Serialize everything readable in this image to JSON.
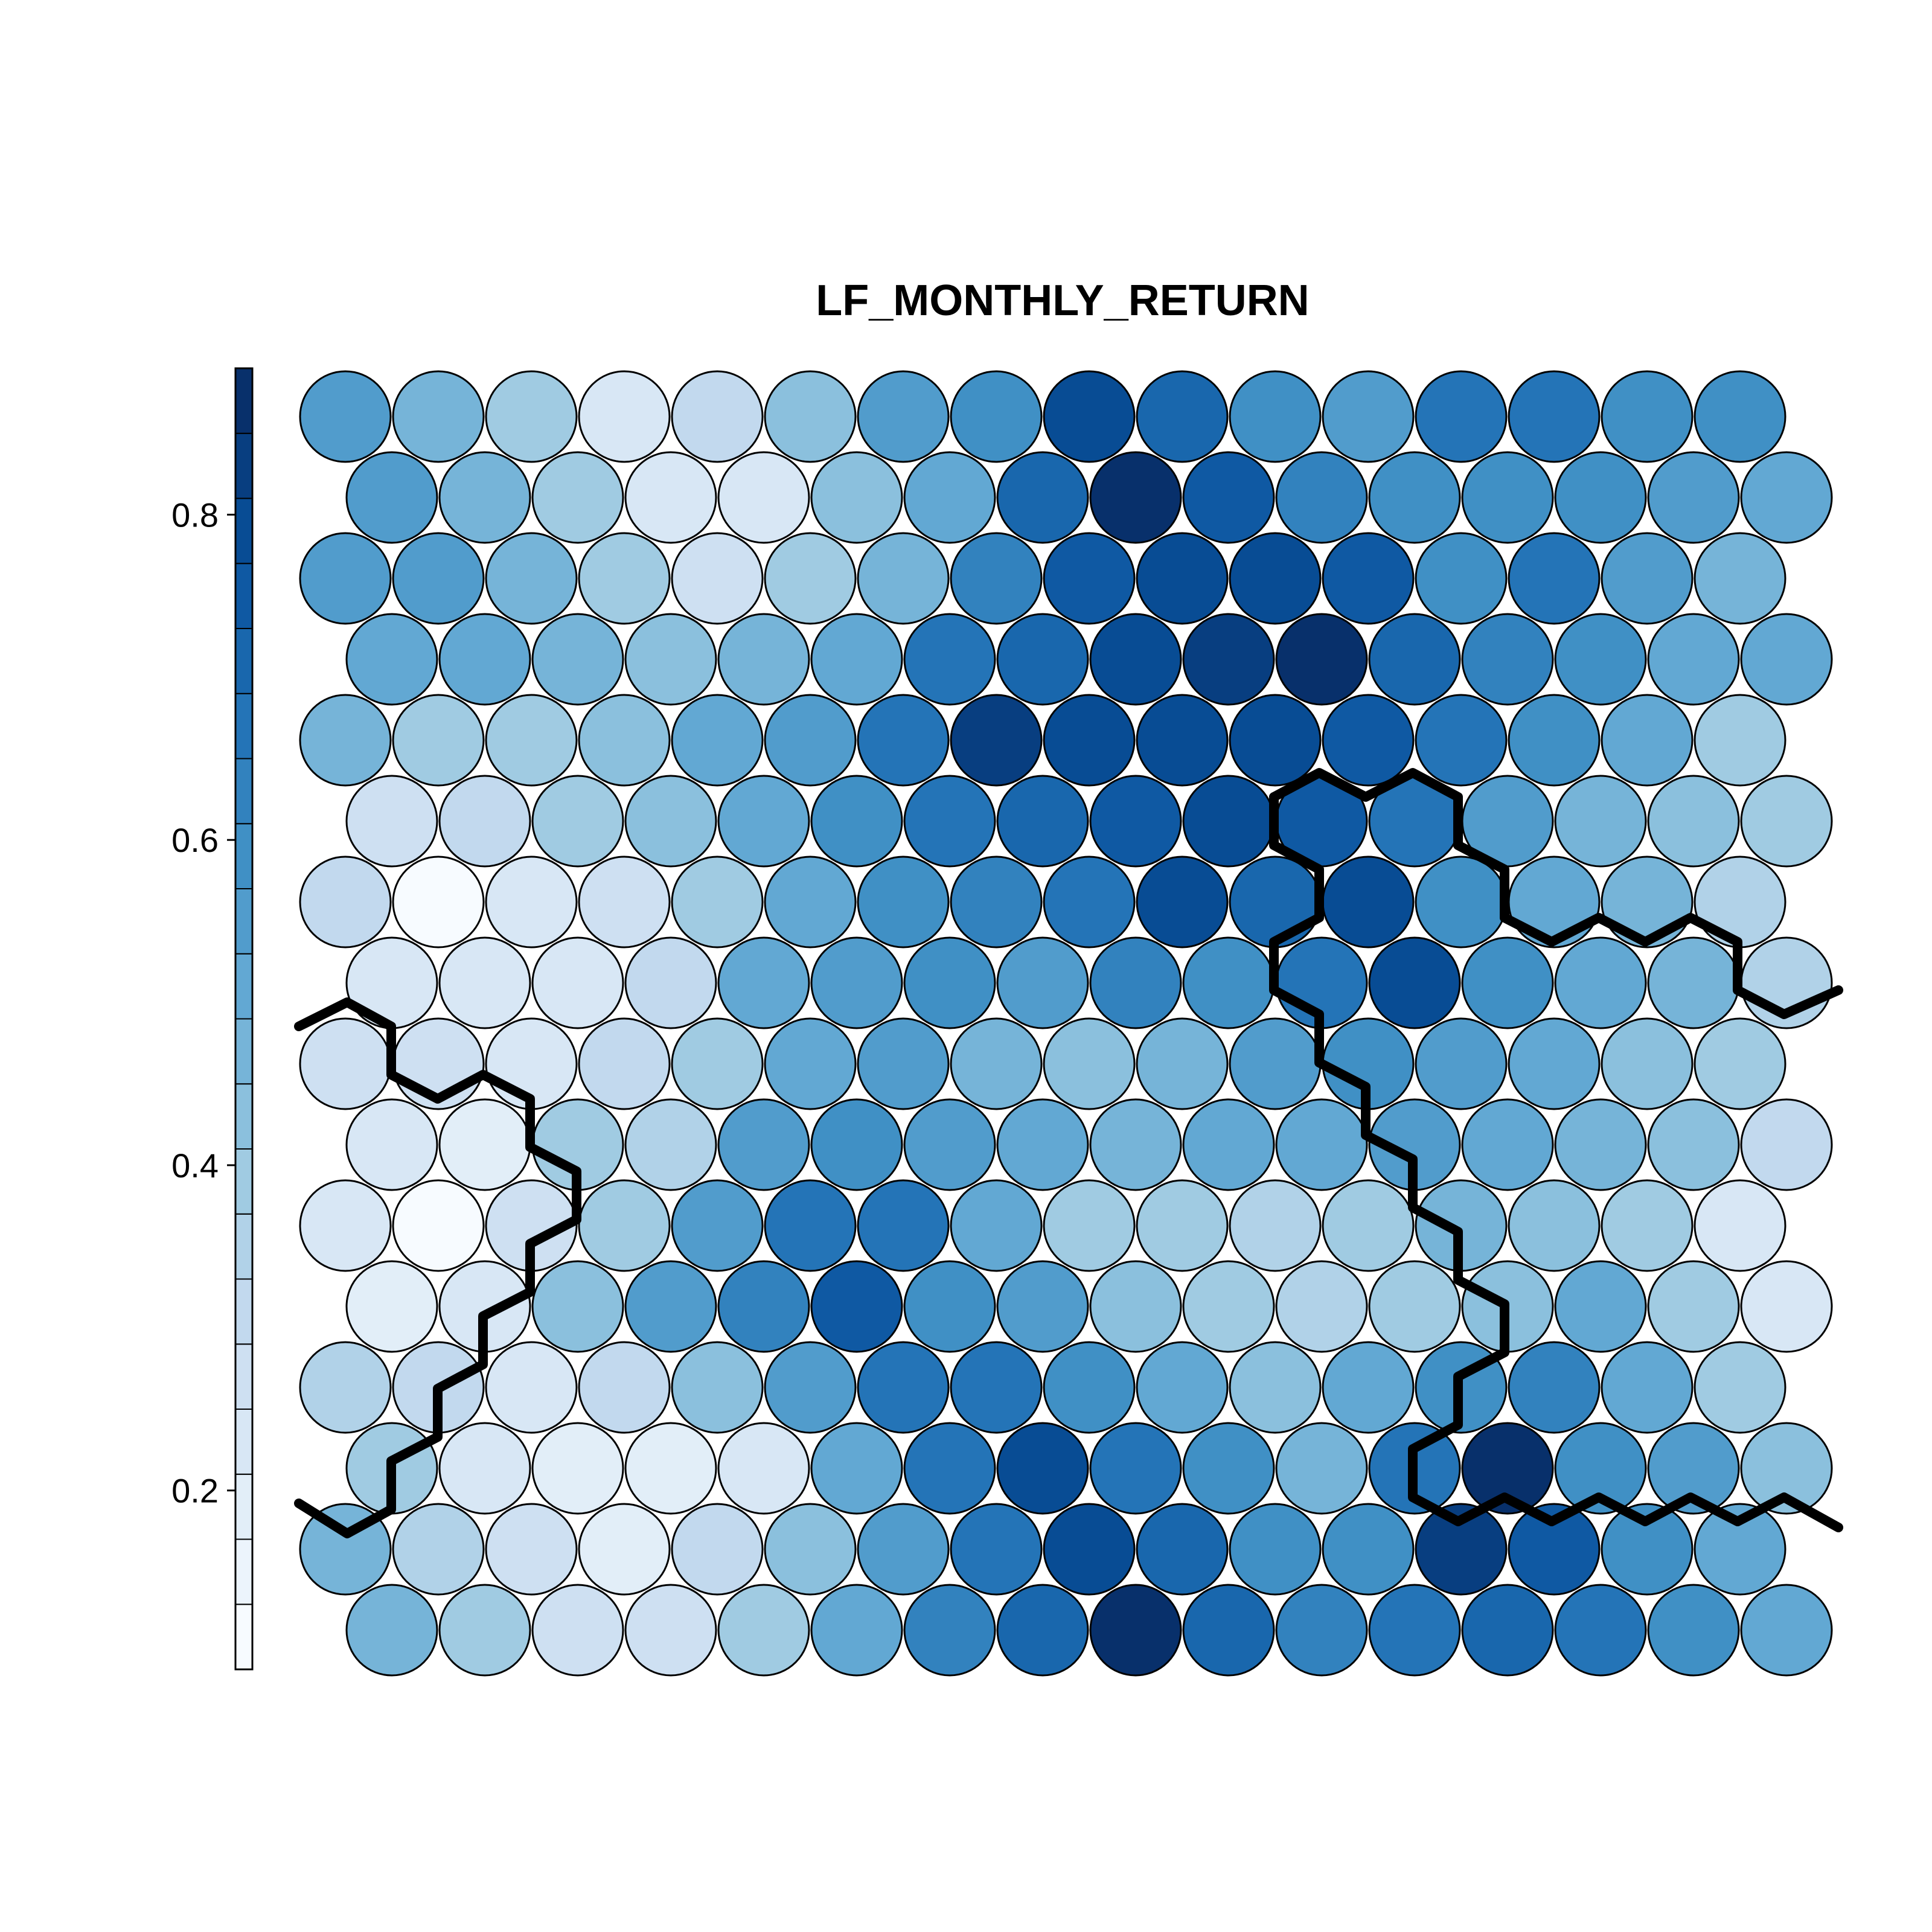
{
  "chart_data": {
    "type": "heatmap",
    "subtype": "som-hexagonal-property-map",
    "title": "LF_MONTHLY_RETURN",
    "grid": {
      "columns": 16,
      "rows": 16,
      "topology": "hexagonal"
    },
    "color_scale": {
      "palette": "Blues",
      "range": [
        0.09,
        0.89
      ],
      "bins": 20,
      "ticks": [
        0.2,
        0.4,
        0.6,
        0.8
      ],
      "tick_labels": [
        "0.2",
        "0.4",
        "0.6",
        "0.8"
      ],
      "palette_stops": [
        "#f7fbff",
        "#deebf7",
        "#c6dbef",
        "#9ecae1",
        "#6baed6",
        "#4292c6",
        "#2171b5",
        "#08519c",
        "#08306b"
      ]
    },
    "row_order": "top-to-bottom",
    "rows_data": [
      [
        0.53,
        0.45,
        0.41,
        0.22,
        0.3,
        0.42,
        0.53,
        0.6,
        0.79,
        0.71,
        0.6,
        0.56,
        0.66,
        0.67,
        0.59,
        0.58
      ],
      [
        0.56,
        0.48,
        0.38,
        0.21,
        0.25,
        0.42,
        0.5,
        0.7,
        0.89,
        0.74,
        0.61,
        0.6,
        0.6,
        0.57,
        0.53,
        0.52
      ],
      [
        0.53,
        0.56,
        0.45,
        0.39,
        0.29,
        0.41,
        0.47,
        0.62,
        0.75,
        0.78,
        0.79,
        0.74,
        0.6,
        0.66,
        0.53,
        0.45
      ],
      [
        0.51,
        0.49,
        0.45,
        0.43,
        0.46,
        0.51,
        0.66,
        0.73,
        0.79,
        0.83,
        0.88,
        0.7,
        0.62,
        0.57,
        0.51,
        0.5
      ],
      [
        0.45,
        0.38,
        0.37,
        0.44,
        0.5,
        0.56,
        0.66,
        0.83,
        0.79,
        0.78,
        0.78,
        0.74,
        0.66,
        0.58,
        0.49,
        0.4
      ],
      [
        0.26,
        0.31,
        0.37,
        0.44,
        0.5,
        0.6,
        0.66,
        0.7,
        0.74,
        0.8,
        0.74,
        0.65,
        0.56,
        0.48,
        0.43,
        0.37
      ],
      [
        0.31,
        0.1,
        0.21,
        0.28,
        0.41,
        0.51,
        0.57,
        0.62,
        0.66,
        0.79,
        0.73,
        0.79,
        0.58,
        0.5,
        0.47,
        0.36
      ],
      [
        0.22,
        0.21,
        0.23,
        0.3,
        0.5,
        0.53,
        0.57,
        0.55,
        0.62,
        0.57,
        0.67,
        0.8,
        0.58,
        0.51,
        0.45,
        0.36
      ],
      [
        0.27,
        0.27,
        0.25,
        0.31,
        0.41,
        0.49,
        0.55,
        0.46,
        0.42,
        0.45,
        0.53,
        0.59,
        0.55,
        0.51,
        0.44,
        0.38
      ],
      [
        0.23,
        0.19,
        0.4,
        0.35,
        0.53,
        0.59,
        0.55,
        0.49,
        0.46,
        0.49,
        0.5,
        0.54,
        0.5,
        0.45,
        0.42,
        0.3
      ],
      [
        0.25,
        0.1,
        0.27,
        0.41,
        0.55,
        0.67,
        0.65,
        0.51,
        0.41,
        0.39,
        0.36,
        0.4,
        0.45,
        0.42,
        0.38,
        0.24
      ],
      [
        0.2,
        0.23,
        0.42,
        0.53,
        0.61,
        0.74,
        0.6,
        0.53,
        0.44,
        0.37,
        0.36,
        0.37,
        0.44,
        0.52,
        0.4,
        0.25
      ],
      [
        0.36,
        0.31,
        0.25,
        0.31,
        0.42,
        0.55,
        0.66,
        0.65,
        0.58,
        0.52,
        0.44,
        0.49,
        0.58,
        0.63,
        0.51,
        0.38
      ],
      [
        0.4,
        0.25,
        0.17,
        0.2,
        0.22,
        0.51,
        0.66,
        0.79,
        0.66,
        0.57,
        0.45,
        0.65,
        0.89,
        0.59,
        0.53,
        0.44
      ],
      [
        0.45,
        0.36,
        0.26,
        0.19,
        0.3,
        0.44,
        0.55,
        0.67,
        0.79,
        0.7,
        0.6,
        0.6,
        0.81,
        0.74,
        0.57,
        0.49
      ],
      [
        0.48,
        0.41,
        0.29,
        0.26,
        0.4,
        0.49,
        0.62,
        0.71,
        0.89,
        0.7,
        0.63,
        0.66,
        0.7,
        0.66,
        0.57,
        0.52
      ]
    ],
    "cluster_boundaries": true
  }
}
